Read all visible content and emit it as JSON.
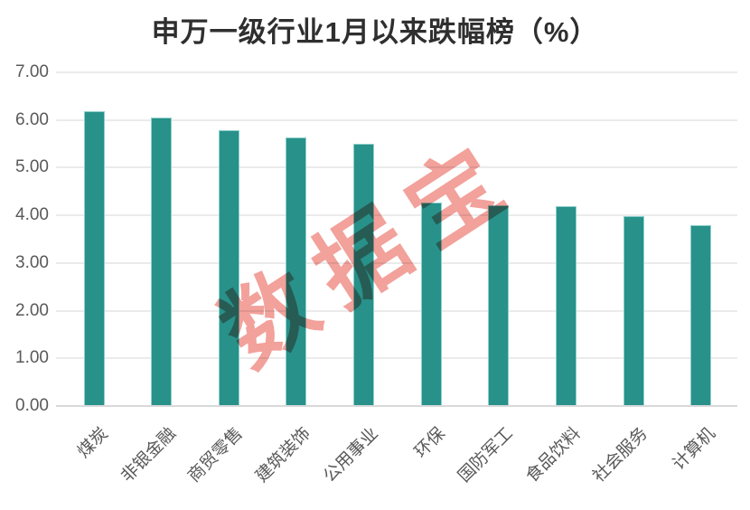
{
  "title": "申万一级行业1月以来跌幅榜（%）",
  "watermark": "数据宝",
  "chart_data": {
    "type": "bar",
    "title": "申万一级行业1月以来跌幅榜（%）",
    "categories": [
      "煤炭",
      "非银金融",
      "商贸零售",
      "建筑装饰",
      "公用事业",
      "环保",
      "国防军工",
      "食品饮料",
      "社会服务",
      "计算机"
    ],
    "values": [
      6.18,
      6.05,
      5.78,
      5.64,
      5.51,
      4.27,
      4.21,
      4.2,
      3.99,
      3.79
    ],
    "xlabel": "",
    "ylabel": "",
    "ylim": [
      0,
      7
    ],
    "ytick_step": 1,
    "ytick_decimals": 2,
    "grid": true,
    "legend_position": "none",
    "x_label_rotation_deg": 45,
    "annotations": [
      "数据宝 watermark (red, diagonal)"
    ],
    "colors": {
      "bar_fill": "#28918a",
      "bar_edge": "#8fd0cb",
      "gridline": "#ebebeb",
      "axis_line": "#d9d9d9",
      "tick_label": "#595959",
      "title_text": "#2f2f2f",
      "watermark_pink": "#f2a19b"
    }
  }
}
